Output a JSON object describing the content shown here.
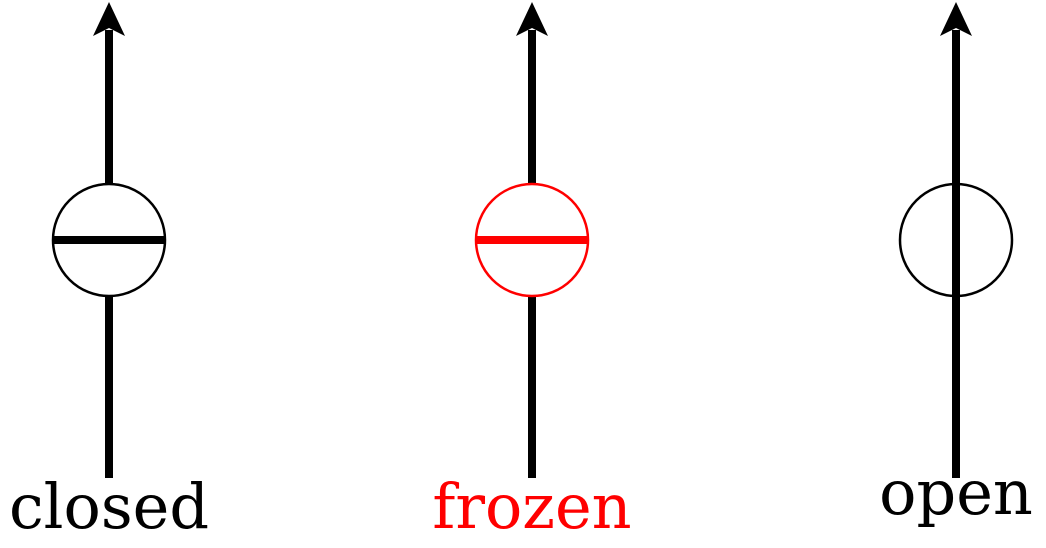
{
  "valves": [
    {
      "state": "closed",
      "label": "closed",
      "color": "#000000",
      "line_through_circle": false,
      "bar": true
    },
    {
      "state": "frozen",
      "label": "frozen",
      "color": "#ff0000",
      "line_through_circle": false,
      "bar": true
    },
    {
      "state": "open",
      "label": "open",
      "color": "#000000",
      "line_through_circle": true,
      "bar": false
    }
  ],
  "colors": {
    "stem": "#000000",
    "background": "#ffffff"
  }
}
